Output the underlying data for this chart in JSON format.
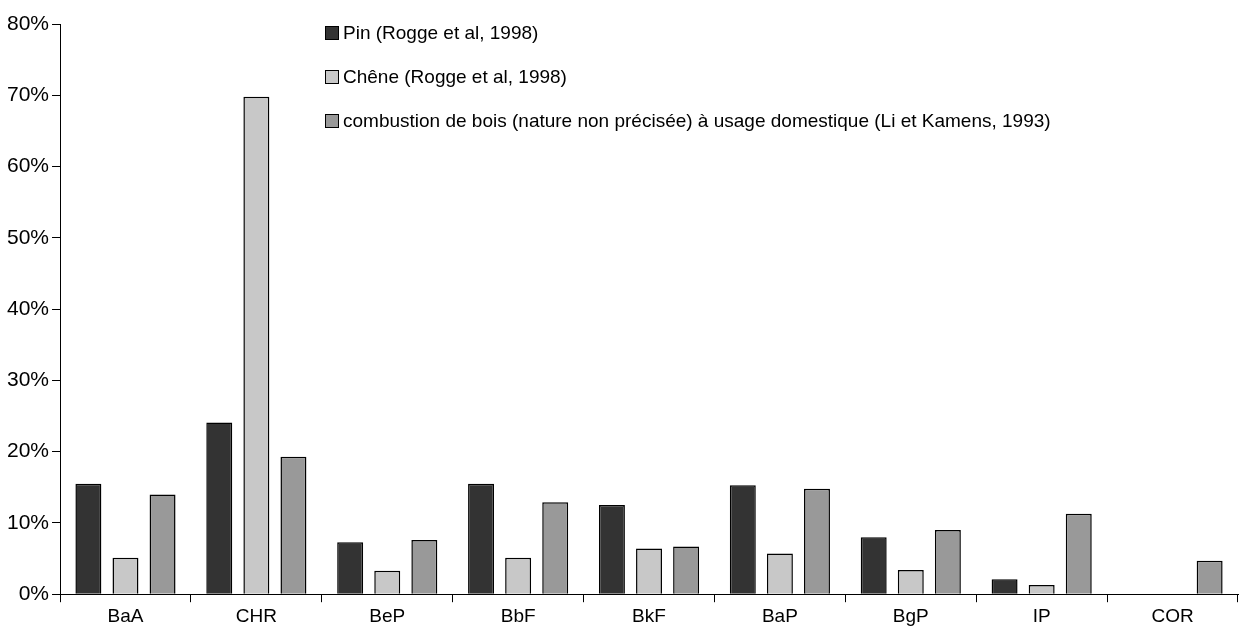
{
  "chart_data": {
    "type": "bar",
    "categories": [
      "BaA",
      "CHR",
      "BeP",
      "BbF",
      "BkF",
      "BaP",
      "BgP",
      "IP",
      "COR"
    ],
    "series": [
      {
        "name": "Pin (Rogge et al, 1998)",
        "color": "#333333",
        "values": [
          15.5,
          24.1,
          7.3,
          15.5,
          12.5,
          15.3,
          8.0,
          2.1,
          null
        ]
      },
      {
        "name": "Chêne (Rogge et al, 1998)",
        "color": "#c8c8c8",
        "values": [
          5.1,
          69.8,
          3.3,
          5.1,
          6.4,
          5.7,
          3.4,
          1.3,
          null
        ]
      },
      {
        "name": "combustion de bois (nature non précisée) à usage domestique (Li et Kamens, 1993)",
        "color": "#999999",
        "values": [
          14.0,
          19.3,
          7.6,
          12.9,
          6.7,
          14.8,
          9.0,
          11.3,
          4.7
        ]
      }
    ],
    "ylim": [
      0,
      80
    ],
    "yticks": [
      {
        "value": 0,
        "label": "0%"
      },
      {
        "value": 10,
        "label": "10%"
      },
      {
        "value": 20,
        "label": "20%"
      },
      {
        "value": 30,
        "label": "30%"
      },
      {
        "value": 40,
        "label": "40%"
      },
      {
        "value": 50,
        "label": "50%"
      },
      {
        "value": 60,
        "label": "60%"
      },
      {
        "value": 70,
        "label": "70%"
      },
      {
        "value": 80,
        "label": "80%"
      }
    ],
    "grid": false,
    "legend": "top right"
  }
}
